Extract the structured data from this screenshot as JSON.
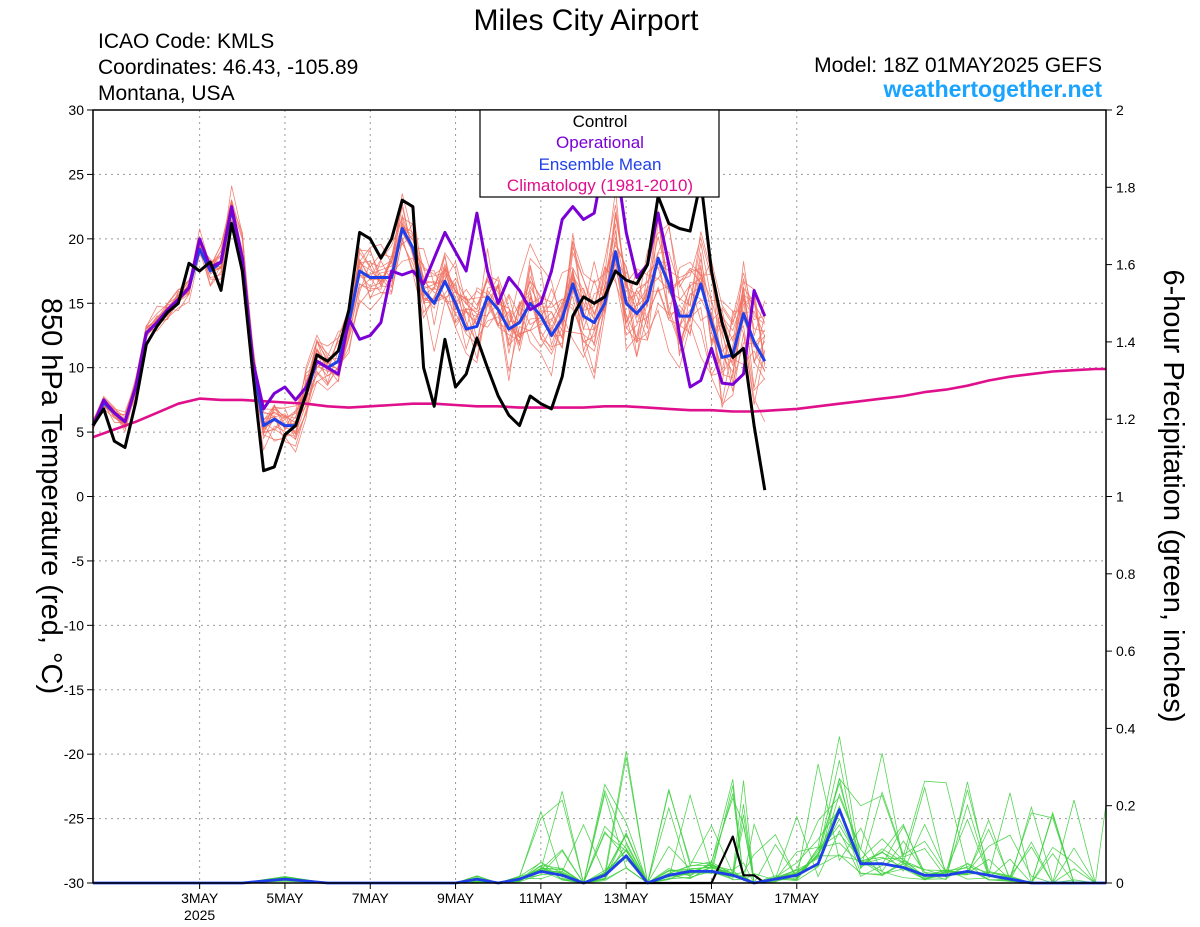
{
  "header": {
    "title": "Miles City Airport",
    "icao": "ICAO Code: KMLS",
    "coordinates": "Coordinates: 46.43, -105.89",
    "region": "Montana, USA",
    "model": "Model: 18Z 01MAY2025 GEFS",
    "website": "weathertogether.net"
  },
  "colors": {
    "control": "#000000",
    "operational": "#7a00d6",
    "mean": "#1f3fe8",
    "climatology": "#e0108c",
    "members_temp": "#f07060",
    "members_precip": "#40d040",
    "website": "#1aa3ff"
  },
  "chart_data": {
    "type": "line",
    "title": "Miles City Airport",
    "x_axis": {
      "unit": "6-hour steps from 18Z 01 MAY 2025",
      "range": [
        0,
        95
      ],
      "tick_labels": [
        "3MAY",
        "5MAY",
        "7MAY",
        "9MAY",
        "11MAY",
        "13MAY",
        "15MAY",
        "17MAY"
      ],
      "tick_steps": [
        10,
        18,
        26,
        34,
        42,
        50,
        58,
        66
      ],
      "year_label": "2025"
    },
    "y_left": {
      "label": "850 hPa Temperature (red, °C)",
      "range": [
        -30,
        30
      ],
      "ticks": [
        -30,
        -25,
        -20,
        -15,
        -10,
        -5,
        0,
        5,
        10,
        15,
        20,
        25,
        30
      ]
    },
    "y_right": {
      "label": "6-hour Precipitation (green, inches)",
      "range": [
        0,
        2
      ],
      "ticks": [
        "0",
        "0.2",
        "0.4",
        "0.6",
        "0.8",
        "1",
        "1.2",
        "1.4",
        "1.6",
        "1.8",
        "2"
      ]
    },
    "grid": true,
    "legend_position": "top-center",
    "legend": [
      "Control",
      "Operational",
      "Ensemble Mean",
      "Climatology (1981-2010)"
    ],
    "temperature_series": [
      {
        "name": "Control",
        "color": "#000000",
        "x": [
          0,
          1,
          2,
          3,
          4,
          5,
          6,
          7,
          8,
          9,
          10,
          11,
          12,
          13,
          14,
          15,
          16,
          17,
          18,
          19,
          20,
          21,
          22,
          23,
          24,
          25,
          26,
          27,
          28,
          29,
          30,
          31,
          32,
          33,
          34,
          35,
          36,
          37,
          38,
          39,
          40,
          41,
          42,
          43,
          44,
          45,
          46,
          47,
          48,
          49,
          50,
          51,
          52,
          53,
          54,
          55,
          56,
          57,
          58,
          59,
          60,
          61,
          62,
          63
        ],
        "y": [
          5.5,
          6.8,
          4.3,
          3.8,
          7.3,
          11.8,
          13.2,
          14.3,
          15.0,
          18.1,
          17.5,
          18.2,
          16.0,
          21.2,
          17.5,
          9.5,
          2.0,
          2.3,
          4.8,
          5.5,
          8.0,
          11.0,
          10.5,
          11.3,
          14.5,
          20.5,
          20.0,
          18.5,
          20.0,
          23.0,
          22.5,
          10.0,
          7.0,
          12.2,
          8.5,
          9.5,
          12.3,
          10.0,
          7.8,
          6.3,
          5.5,
          7.8,
          7.2,
          6.8,
          9.3,
          14.0,
          15.5,
          15.0,
          15.5,
          17.5,
          16.8,
          16.5,
          18.0,
          23.3,
          21.2,
          20.8,
          20.6,
          24.5,
          17.5,
          13.5,
          10.8,
          11.5,
          5.5,
          0.5
        ]
      },
      {
        "name": "Operational",
        "color": "#7a00d6",
        "x": [
          0,
          1,
          2,
          3,
          4,
          5,
          6,
          7,
          8,
          9,
          10,
          11,
          12,
          13,
          14,
          15,
          16,
          17,
          18,
          19,
          20,
          21,
          22,
          23,
          24,
          25,
          26,
          27,
          28,
          29,
          30,
          31,
          32,
          33,
          34,
          35,
          36,
          37,
          38,
          39,
          40,
          41,
          42,
          43,
          44,
          45,
          46,
          47,
          48,
          49,
          50,
          51,
          52,
          53,
          54,
          55,
          56,
          57,
          58,
          59,
          60,
          61,
          62,
          63
        ],
        "y": [
          5.5,
          7.5,
          6.5,
          5.8,
          8.5,
          12.7,
          13.5,
          14.5,
          15.3,
          16.2,
          20.0,
          17.8,
          18.2,
          22.5,
          18.5,
          10.5,
          6.8,
          8.0,
          8.5,
          7.5,
          8.5,
          10.5,
          10.0,
          9.5,
          13.8,
          12.2,
          12.5,
          13.5,
          17.5,
          17.2,
          17.5,
          16.5,
          18.5,
          20.5,
          19.0,
          17.5,
          22.0,
          17.5,
          15.0,
          17.0,
          16.0,
          14.5,
          15.0,
          17.5,
          21.5,
          22.5,
          21.5,
          22.0,
          26.4,
          26.3,
          20.5,
          17.0,
          18.0,
          22.0,
          18.0,
          12.5,
          8.5,
          9.0,
          11.5,
          8.8,
          8.7,
          9.5,
          16.0,
          14.0
        ]
      },
      {
        "name": "Ensemble Mean",
        "color": "#1f3fe8",
        "x": [
          0,
          1,
          2,
          3,
          4,
          5,
          6,
          7,
          8,
          9,
          10,
          11,
          12,
          13,
          14,
          15,
          16,
          17,
          18,
          19,
          20,
          21,
          22,
          23,
          24,
          25,
          26,
          27,
          28,
          29,
          30,
          31,
          32,
          33,
          34,
          35,
          36,
          37,
          38,
          39,
          40,
          41,
          42,
          43,
          44,
          45,
          46,
          47,
          48,
          49,
          50,
          51,
          52,
          53,
          54,
          55,
          56,
          57,
          58,
          59,
          60,
          61,
          62,
          63
        ],
        "y": [
          5.5,
          7.3,
          6.5,
          5.8,
          8.5,
          12.7,
          13.5,
          14.5,
          15.3,
          16.2,
          19.2,
          17.5,
          18.2,
          22.3,
          18.5,
          10.5,
          5.5,
          6.0,
          5.5,
          5.5,
          8.0,
          10.5,
          10.0,
          10.5,
          13.5,
          17.5,
          17.0,
          17.0,
          17.0,
          20.8,
          19.3,
          16.0,
          15.0,
          16.7,
          15.0,
          13.0,
          13.2,
          15.5,
          14.5,
          13.0,
          13.5,
          15.0,
          14.0,
          12.5,
          13.8,
          16.5,
          14.0,
          13.5,
          15.0,
          19.0,
          15.0,
          14.2,
          15.2,
          18.5,
          16.5,
          14.0,
          14.0,
          16.5,
          13.5,
          10.8,
          11.0,
          14.2,
          12.0,
          10.5
        ]
      },
      {
        "name": "Climatology (1981-2010)",
        "color": "#e0108c",
        "x": [
          0,
          2,
          4,
          6,
          8,
          10,
          12,
          14,
          16,
          18,
          20,
          22,
          24,
          26,
          28,
          30,
          32,
          34,
          36,
          38,
          40,
          42,
          44,
          46,
          48,
          50,
          52,
          54,
          56,
          58,
          60,
          62,
          64,
          66,
          68,
          70,
          72,
          74,
          76,
          78,
          80,
          82,
          84,
          86,
          88,
          90,
          92,
          94,
          95
        ],
        "y": [
          4.6,
          5.2,
          5.8,
          6.5,
          7.2,
          7.6,
          7.5,
          7.5,
          7.4,
          7.3,
          7.2,
          7.0,
          6.9,
          7.0,
          7.1,
          7.2,
          7.2,
          7.1,
          7.0,
          7.0,
          6.9,
          6.9,
          6.9,
          6.9,
          7.0,
          7.0,
          6.9,
          6.8,
          6.7,
          6.7,
          6.6,
          6.6,
          6.7,
          6.8,
          7.0,
          7.2,
          7.4,
          7.6,
          7.8,
          8.1,
          8.3,
          8.6,
          9.0,
          9.3,
          9.5,
          9.7,
          9.8,
          9.9,
          9.9
        ]
      }
    ],
    "precipitation_series": [
      {
        "name": "Control",
        "color": "#000000",
        "x": [
          50,
          52,
          54,
          56,
          58,
          60,
          61,
          62,
          63
        ],
        "y": [
          0.0,
          0.0,
          0.0,
          0.0,
          0.0,
          0.12,
          0.02,
          0.02,
          0.0
        ]
      },
      {
        "name": "Ensemble Mean",
        "color": "#1f3fe8",
        "x": [
          0,
          6,
          10,
          12,
          14,
          18,
          22,
          24,
          26,
          28,
          30,
          32,
          34,
          36,
          38,
          40,
          42,
          44,
          46,
          48,
          50,
          52,
          54,
          56,
          58,
          60,
          61,
          62,
          64,
          66,
          68,
          70,
          72,
          74,
          76,
          78,
          80,
          82,
          84,
          86,
          88,
          90,
          92,
          94,
          95
        ],
        "y": [
          0.0,
          0.0,
          0.0,
          0.0,
          0.0,
          0.01,
          0.0,
          0.0,
          0.0,
          0.0,
          0.0,
          0.0,
          0.0,
          0.01,
          0.0,
          0.01,
          0.03,
          0.02,
          0.0,
          0.02,
          0.07,
          0.0,
          0.02,
          0.03,
          0.03,
          0.02,
          0.01,
          0.0,
          0.01,
          0.02,
          0.05,
          0.19,
          0.05,
          0.05,
          0.04,
          0.02,
          0.02,
          0.03,
          0.02,
          0.01,
          0.0,
          0.0,
          0.0,
          0.0,
          0.0
        ]
      }
    ]
  }
}
